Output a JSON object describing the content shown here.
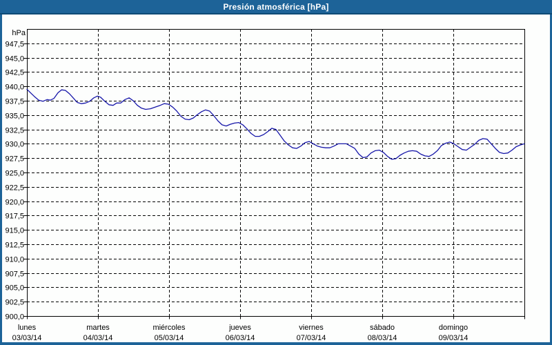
{
  "window": {
    "title": "Presión atmosférica [hPa]"
  },
  "colors": {
    "titlebar": "#1d6398",
    "titlebar_edge": "#0d4a75",
    "frame": "#1d6398",
    "surface": "#fdfefd",
    "line": "#1515a8",
    "grid": "#000000",
    "text": "#000000"
  },
  "chart_data": {
    "type": "line",
    "title": "Presión atmosférica [hPa]",
    "legend": "none",
    "grid": "dashed",
    "y_axis": {
      "unit_label": "hPa",
      "min": 900,
      "max": 950,
      "tick_step": 2.5,
      "ticks": [
        {
          "value": 947.5,
          "label": "947,5"
        },
        {
          "value": 945.0,
          "label": "945,0"
        },
        {
          "value": 942.5,
          "label": "942,5"
        },
        {
          "value": 940.0,
          "label": "940,0"
        },
        {
          "value": 937.5,
          "label": "937,5"
        },
        {
          "value": 935.0,
          "label": "935,0"
        },
        {
          "value": 932.5,
          "label": "932,5"
        },
        {
          "value": 930.0,
          "label": "930,0"
        },
        {
          "value": 927.5,
          "label": "927,5"
        },
        {
          "value": 925.0,
          "label": "925,0"
        },
        {
          "value": 922.5,
          "label": "922,5"
        },
        {
          "value": 920.0,
          "label": "920,0"
        },
        {
          "value": 917.5,
          "label": "917,5"
        },
        {
          "value": 915.0,
          "label": "915,0"
        },
        {
          "value": 912.5,
          "label": "912,5"
        },
        {
          "value": 910.0,
          "label": "910,0"
        },
        {
          "value": 907.5,
          "label": "907,5"
        },
        {
          "value": 905.0,
          "label": "905,0"
        },
        {
          "value": 902.5,
          "label": "902,5"
        },
        {
          "value": 900.0,
          "label": "900,0"
        }
      ]
    },
    "x_axis": {
      "unit": "hours_from_monday_00h",
      "hours_total": 168,
      "days": [
        {
          "name": "lunes",
          "date": "03/03/14"
        },
        {
          "name": "martes",
          "date": "04/03/14"
        },
        {
          "name": "miércoles",
          "date": "05/03/14"
        },
        {
          "name": "jueves",
          "date": "06/03/14"
        },
        {
          "name": "viernes",
          "date": "07/03/14"
        },
        {
          "name": "sábado",
          "date": "08/03/14"
        },
        {
          "name": "domingo",
          "date": "09/03/14"
        }
      ]
    },
    "series": [
      {
        "name": "Presión atmosférica",
        "color": "#1515a8",
        "points": [
          [
            0,
            939.5
          ],
          [
            1.4,
            938.8
          ],
          [
            2.6,
            938.2
          ],
          [
            4,
            937.6
          ],
          [
            5.4,
            937.4
          ],
          [
            6.8,
            937.7
          ],
          [
            7.9,
            937.6
          ],
          [
            9.1,
            937.9
          ],
          [
            10.5,
            938.9
          ],
          [
            11.7,
            939.4
          ],
          [
            13,
            939.3
          ],
          [
            14.4,
            938.7
          ],
          [
            15.8,
            937.9
          ],
          [
            17,
            937.2
          ],
          [
            18.4,
            937
          ],
          [
            19.8,
            937.1
          ],
          [
            21.2,
            937.4
          ],
          [
            22.6,
            938
          ],
          [
            23.8,
            938.3
          ],
          [
            24.9,
            938.1
          ],
          [
            26.3,
            937.4
          ],
          [
            27.7,
            936.8
          ],
          [
            29.1,
            936.7
          ],
          [
            30.3,
            937.1
          ],
          [
            31.7,
            937.1
          ],
          [
            33.1,
            937.7
          ],
          [
            34.5,
            938
          ],
          [
            35.9,
            937.5
          ],
          [
            37.3,
            936.7
          ],
          [
            38.7,
            936.2
          ],
          [
            40.1,
            936
          ],
          [
            41.7,
            936.1
          ],
          [
            43.3,
            936.4
          ],
          [
            45,
            936.7
          ],
          [
            46.4,
            937
          ],
          [
            47.8,
            936.9
          ],
          [
            49.2,
            936.4
          ],
          [
            50.6,
            935.7
          ],
          [
            52,
            934.8
          ],
          [
            53.4,
            934.3
          ],
          [
            54.8,
            934.2
          ],
          [
            56.2,
            934.5
          ],
          [
            57.6,
            935.1
          ],
          [
            59,
            935.6
          ],
          [
            60.3,
            935.9
          ],
          [
            61.7,
            935.7
          ],
          [
            63.1,
            934.9
          ],
          [
            64.5,
            934
          ],
          [
            65.9,
            933.3
          ],
          [
            67.3,
            933.1
          ],
          [
            68.7,
            933.4
          ],
          [
            70.1,
            933.6
          ],
          [
            71.5,
            933.7
          ],
          [
            72.9,
            933.3
          ],
          [
            74.3,
            932.6
          ],
          [
            75.7,
            931.8
          ],
          [
            77.1,
            931.3
          ],
          [
            78.5,
            931.3
          ],
          [
            79.9,
            931.6
          ],
          [
            81.3,
            932.1
          ],
          [
            82.7,
            932.7
          ],
          [
            84.1,
            932.5
          ],
          [
            85.5,
            931.5
          ],
          [
            86.9,
            930.5
          ],
          [
            88.3,
            929.8
          ],
          [
            89.7,
            929.3
          ],
          [
            91.1,
            929.2
          ],
          [
            92.5,
            929.6
          ],
          [
            93.9,
            930.2
          ],
          [
            95.3,
            930.4
          ],
          [
            96.7,
            930
          ],
          [
            98.1,
            929.6
          ],
          [
            99.5,
            929.4
          ],
          [
            100.9,
            929.3
          ],
          [
            102.3,
            929.3
          ],
          [
            103.7,
            929.6
          ],
          [
            105.1,
            930
          ],
          [
            106.5,
            930
          ],
          [
            107.9,
            930
          ],
          [
            109.3,
            929.6
          ],
          [
            110.7,
            929.2
          ],
          [
            112.1,
            928.2
          ],
          [
            113.5,
            927.6
          ],
          [
            114.8,
            927.7
          ],
          [
            116.2,
            928.4
          ],
          [
            117.6,
            928.8
          ],
          [
            119,
            928.9
          ],
          [
            120.4,
            928.5
          ],
          [
            121.8,
            927.8
          ],
          [
            123.2,
            927.3
          ],
          [
            124.6,
            927.4
          ],
          [
            126,
            928
          ],
          [
            127.4,
            928.4
          ],
          [
            128.8,
            928.7
          ],
          [
            130.2,
            928.8
          ],
          [
            131.6,
            928.7
          ],
          [
            133,
            928.2
          ],
          [
            134.4,
            927.9
          ],
          [
            135.8,
            927.8
          ],
          [
            137.2,
            928.2
          ],
          [
            138.6,
            928.8
          ],
          [
            140,
            929.7
          ],
          [
            141.4,
            930.1
          ],
          [
            142.8,
            930.3
          ],
          [
            144.2,
            930
          ],
          [
            145.6,
            929.5
          ],
          [
            147,
            929
          ],
          [
            148.4,
            928.9
          ],
          [
            149.8,
            929.4
          ],
          [
            151.2,
            929.9
          ],
          [
            152.6,
            930.6
          ],
          [
            154,
            930.9
          ],
          [
            155.4,
            930.8
          ],
          [
            156.8,
            930
          ],
          [
            158.2,
            929.2
          ],
          [
            159.6,
            928.5
          ],
          [
            161,
            928.3
          ],
          [
            162.4,
            928.4
          ],
          [
            163.8,
            928.9
          ],
          [
            165.2,
            929.5
          ],
          [
            166.6,
            929.8
          ],
          [
            168,
            930
          ]
        ]
      }
    ]
  }
}
